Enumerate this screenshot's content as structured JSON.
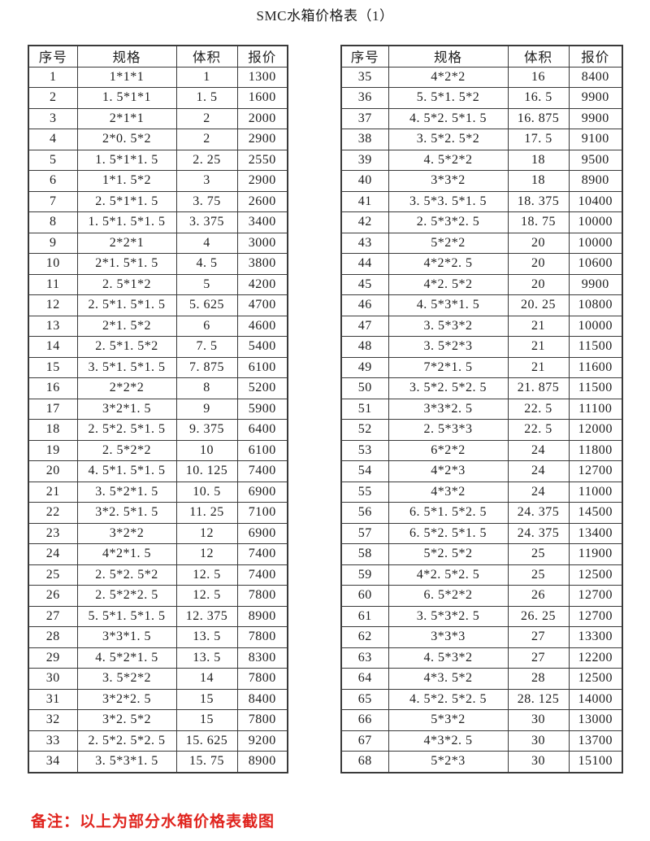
{
  "page": {
    "title": "SMC水箱价格表（1）",
    "note": "备注：以上为部分水箱价格表截图"
  },
  "colors": {
    "background": "#ffffff",
    "table_border": "#3a3a3a",
    "text": "#1e1e1e",
    "note_red": "#e0241e"
  },
  "table_columns": [
    "序号",
    "规格",
    "体积",
    "报价"
  ],
  "tables": [
    {
      "name": "left",
      "rows": [
        [
          "1",
          "1*1*1",
          "1",
          "1300"
        ],
        [
          "2",
          "1. 5*1*1",
          "1. 5",
          "1600"
        ],
        [
          "3",
          "2*1*1",
          "2",
          "2000"
        ],
        [
          "4",
          "2*0. 5*2",
          "2",
          "2900"
        ],
        [
          "5",
          "1. 5*1*1. 5",
          "2. 25",
          "2550"
        ],
        [
          "6",
          "1*1. 5*2",
          "3",
          "2900"
        ],
        [
          "7",
          "2. 5*1*1. 5",
          "3. 75",
          "2600"
        ],
        [
          "8",
          "1. 5*1. 5*1. 5",
          "3. 375",
          "3400"
        ],
        [
          "9",
          "2*2*1",
          "4",
          "3000"
        ],
        [
          "10",
          "2*1. 5*1. 5",
          "4. 5",
          "3800"
        ],
        [
          "11",
          "2. 5*1*2",
          "5",
          "4200"
        ],
        [
          "12",
          "2. 5*1. 5*1. 5",
          "5. 625",
          "4700"
        ],
        [
          "13",
          "2*1. 5*2",
          "6",
          "4600"
        ],
        [
          "14",
          "2. 5*1. 5*2",
          "7. 5",
          "5400"
        ],
        [
          "15",
          "3. 5*1. 5*1. 5",
          "7. 875",
          "6100"
        ],
        [
          "16",
          "2*2*2",
          "8",
          "5200"
        ],
        [
          "17",
          "3*2*1. 5",
          "9",
          "5900"
        ],
        [
          "18",
          "2. 5*2. 5*1. 5",
          "9. 375",
          "6400"
        ],
        [
          "19",
          "2. 5*2*2",
          "10",
          "6100"
        ],
        [
          "20",
          "4. 5*1. 5*1. 5",
          "10. 125",
          "7400"
        ],
        [
          "21",
          "3. 5*2*1. 5",
          "10. 5",
          "6900"
        ],
        [
          "22",
          "3*2. 5*1. 5",
          "11. 25",
          "7100"
        ],
        [
          "23",
          "3*2*2",
          "12",
          "6900"
        ],
        [
          "24",
          "4*2*1. 5",
          "12",
          "7400"
        ],
        [
          "25",
          "2. 5*2. 5*2",
          "12. 5",
          "7400"
        ],
        [
          "26",
          "2. 5*2*2. 5",
          "12. 5",
          "7800"
        ],
        [
          "27",
          "5. 5*1. 5*1. 5",
          "12. 375",
          "8900"
        ],
        [
          "28",
          "3*3*1. 5",
          "13. 5",
          "7800"
        ],
        [
          "29",
          "4. 5*2*1. 5",
          "13. 5",
          "8300"
        ],
        [
          "30",
          "3. 5*2*2",
          "14",
          "7800"
        ],
        [
          "31",
          "3*2*2. 5",
          "15",
          "8400"
        ],
        [
          "32",
          "3*2. 5*2",
          "15",
          "7800"
        ],
        [
          "33",
          "2. 5*2. 5*2. 5",
          "15. 625",
          "9200"
        ],
        [
          "34",
          "3. 5*3*1. 5",
          "15. 75",
          "8900"
        ]
      ]
    },
    {
      "name": "right",
      "rows": [
        [
          "35",
          "4*2*2",
          "16",
          "8400"
        ],
        [
          "36",
          "5. 5*1. 5*2",
          "16. 5",
          "9900"
        ],
        [
          "37",
          "4. 5*2. 5*1. 5",
          "16. 875",
          "9900"
        ],
        [
          "38",
          "3. 5*2. 5*2",
          "17. 5",
          "9100"
        ],
        [
          "39",
          "4. 5*2*2",
          "18",
          "9500"
        ],
        [
          "40",
          "3*3*2",
          "18",
          "8900"
        ],
        [
          "41",
          "3. 5*3. 5*1. 5",
          "18. 375",
          "10400"
        ],
        [
          "42",
          "2. 5*3*2. 5",
          "18. 75",
          "10000"
        ],
        [
          "43",
          "5*2*2",
          "20",
          "10000"
        ],
        [
          "44",
          "4*2*2. 5",
          "20",
          "10600"
        ],
        [
          "45",
          "4*2. 5*2",
          "20",
          "9900"
        ],
        [
          "46",
          "4. 5*3*1. 5",
          "20. 25",
          "10800"
        ],
        [
          "47",
          "3. 5*3*2",
          "21",
          "10000"
        ],
        [
          "48",
          "3. 5*2*3",
          "21",
          "11500"
        ],
        [
          "49",
          "7*2*1. 5",
          "21",
          "11600"
        ],
        [
          "50",
          "3. 5*2. 5*2. 5",
          "21. 875",
          "11500"
        ],
        [
          "51",
          "3*3*2. 5",
          "22. 5",
          "11100"
        ],
        [
          "52",
          "2. 5*3*3",
          "22. 5",
          "12000"
        ],
        [
          "53",
          "6*2*2",
          "24",
          "11800"
        ],
        [
          "54",
          "4*2*3",
          "24",
          "12700"
        ],
        [
          "55",
          "4*3*2",
          "24",
          "11000"
        ],
        [
          "56",
          "6. 5*1. 5*2. 5",
          "24. 375",
          "14500"
        ],
        [
          "57",
          "6. 5*2. 5*1. 5",
          "24. 375",
          "13400"
        ],
        [
          "58",
          "5*2. 5*2",
          "25",
          "11900"
        ],
        [
          "59",
          "4*2. 5*2. 5",
          "25",
          "12500"
        ],
        [
          "60",
          "6. 5*2*2",
          "26",
          "12700"
        ],
        [
          "61",
          "3. 5*3*2. 5",
          "26. 25",
          "12700"
        ],
        [
          "62",
          "3*3*3",
          "27",
          "13300"
        ],
        [
          "63",
          "4. 5*3*2",
          "27",
          "12200"
        ],
        [
          "64",
          "4*3. 5*2",
          "28",
          "12500"
        ],
        [
          "65",
          "4. 5*2. 5*2. 5",
          "28. 125",
          "14000"
        ],
        [
          "66",
          "5*3*2",
          "30",
          "13000"
        ],
        [
          "67",
          "4*3*2. 5",
          "30",
          "13700"
        ],
        [
          "68",
          "5*2*3",
          "30",
          "15100"
        ]
      ]
    }
  ]
}
